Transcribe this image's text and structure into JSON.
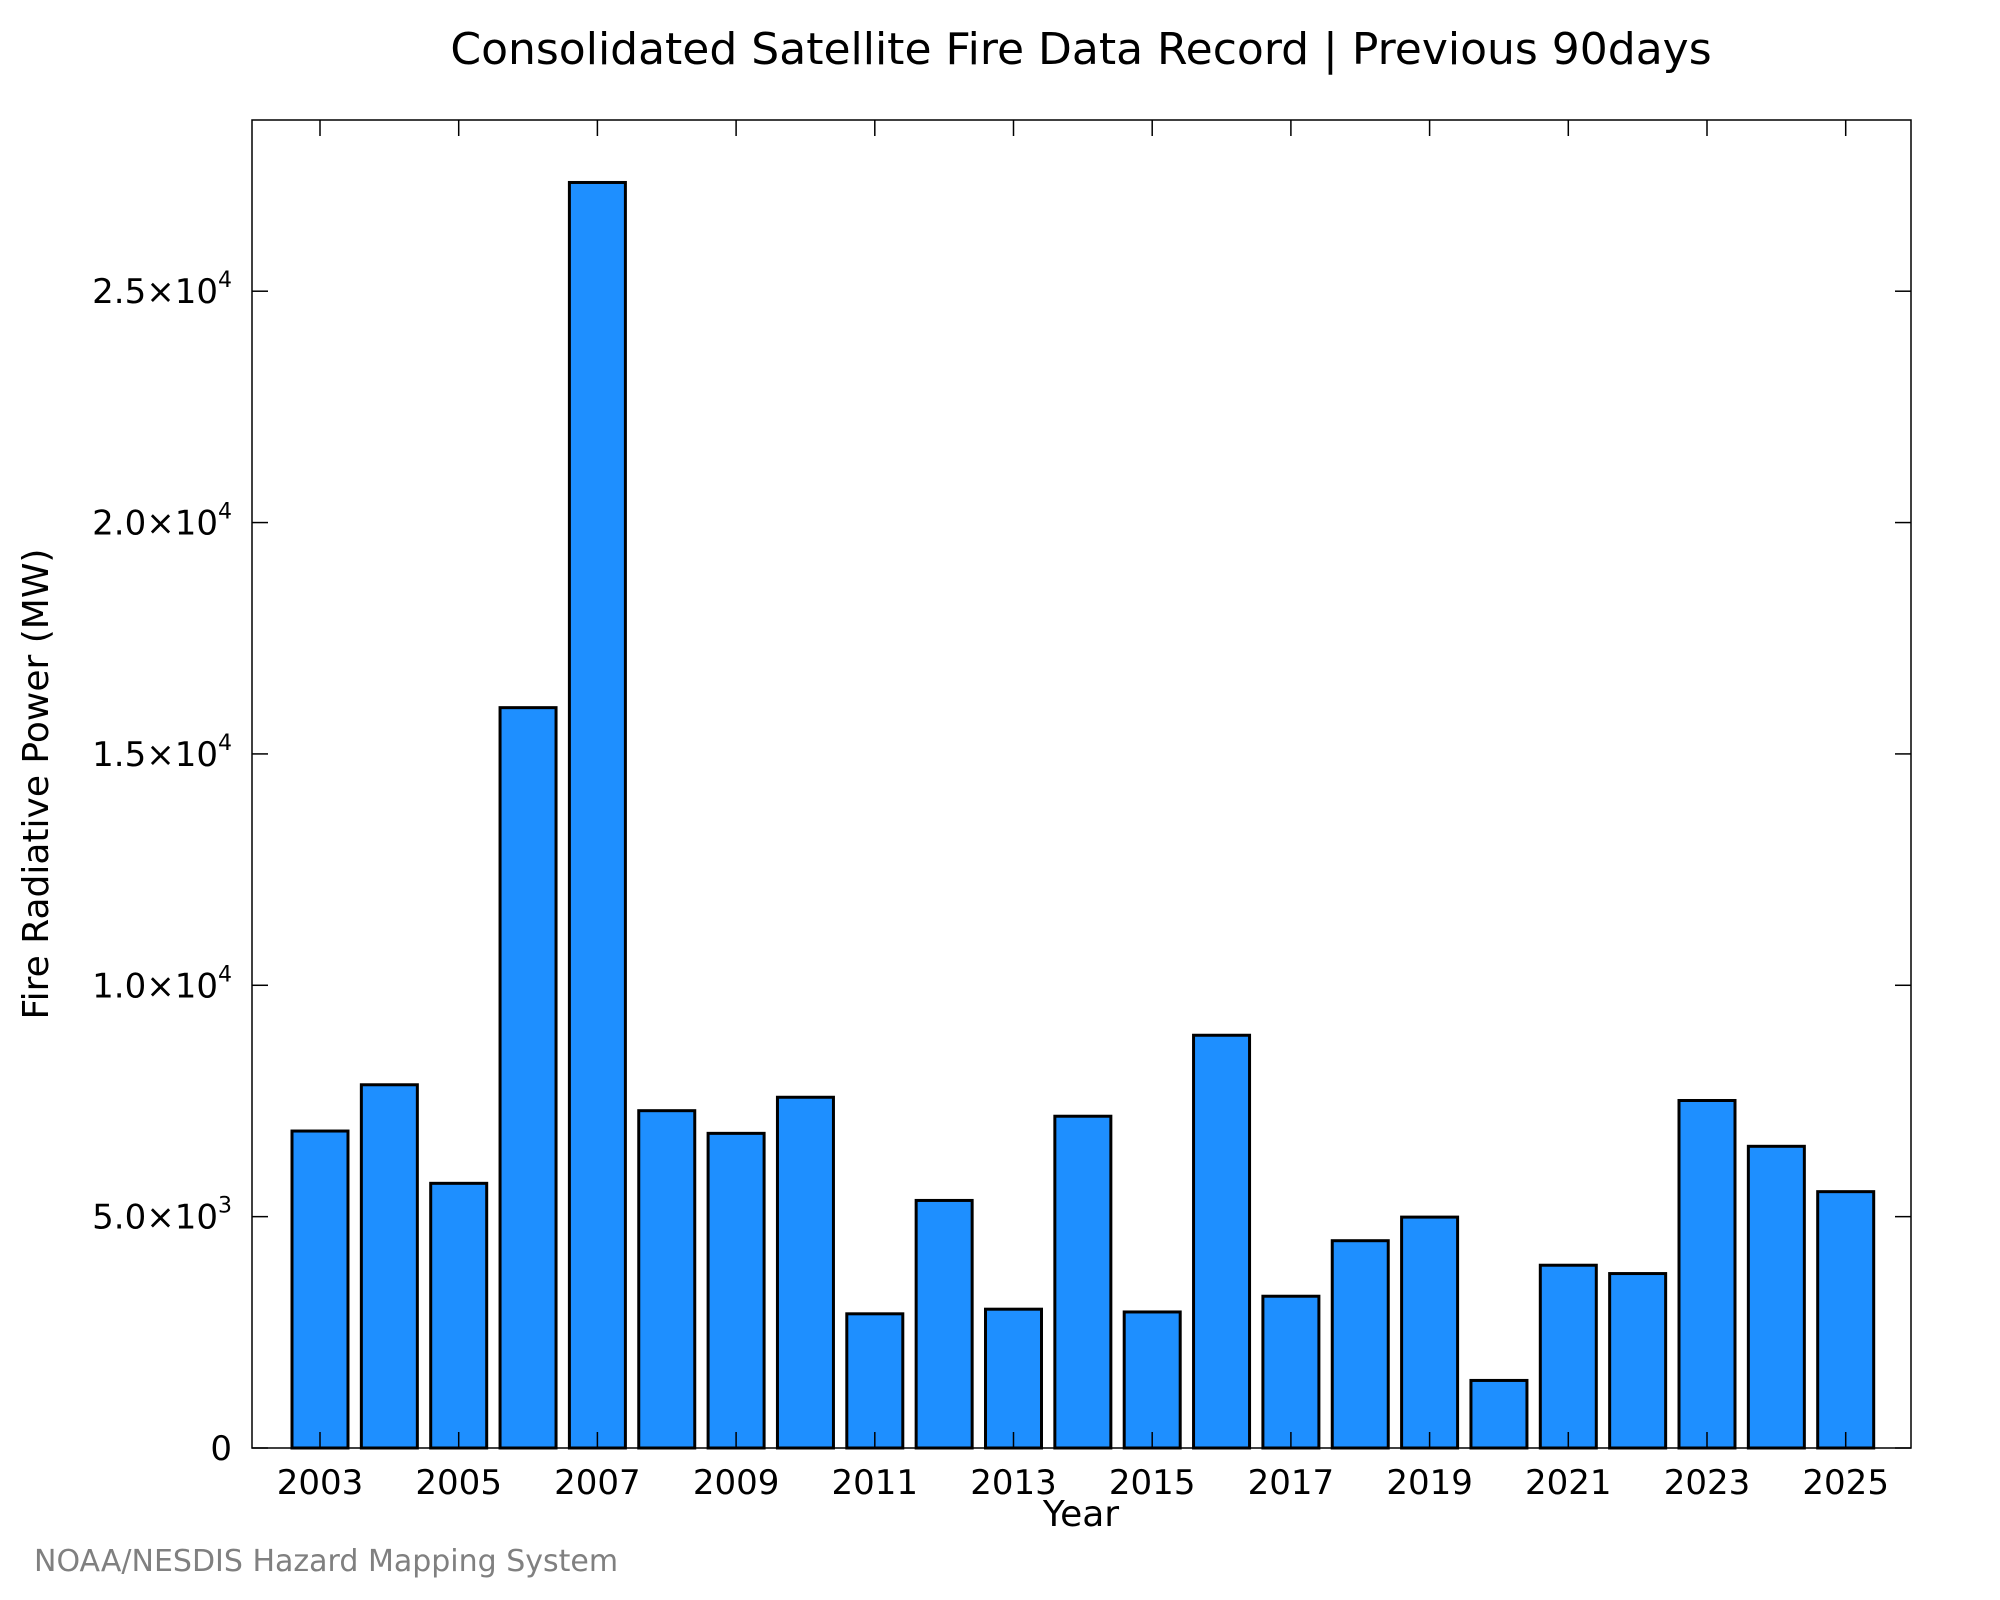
{
  "chart_data": {
    "type": "bar",
    "title": "Consolidated Satellite Fire Data Record | Previous 90days",
    "xlabel": "Year",
    "ylabel": "Fire Radiative Power (MW)",
    "categories": [
      "2003",
      "2004",
      "2005",
      "2006",
      "2007",
      "2008",
      "2009",
      "2010",
      "2011",
      "2012",
      "2013",
      "2014",
      "2015",
      "2016",
      "2017",
      "2018",
      "2019",
      "2020",
      "2021",
      "2022",
      "2023",
      "2024",
      "2025"
    ],
    "values": [
      6850,
      7850,
      5720,
      16000,
      27350,
      7290,
      6800,
      7580,
      2900,
      5350,
      3000,
      7170,
      2940,
      8920,
      3280,
      4480,
      4990,
      1460,
      3950,
      3770,
      7510,
      6520,
      5540
    ],
    "x_ticks": [
      "2003",
      "2005",
      "2007",
      "2009",
      "2011",
      "2013",
      "2015",
      "2017",
      "2019",
      "2021",
      "2023",
      "2025"
    ],
    "y_ticks": [
      {
        "value": 0,
        "mantissa": "0",
        "exp": ""
      },
      {
        "value": 5000,
        "mantissa": "5.0×10",
        "exp": "3"
      },
      {
        "value": 10000,
        "mantissa": "1.0×10",
        "exp": "4"
      },
      {
        "value": 15000,
        "mantissa": "1.5×10",
        "exp": "4"
      },
      {
        "value": 20000,
        "mantissa": "2.0×10",
        "exp": "4"
      },
      {
        "value": 25000,
        "mantissa": "2.5×10",
        "exp": "4"
      }
    ],
    "ylim": [
      0,
      28700
    ],
    "grid": false,
    "bar_color": "#1e8fff",
    "footer": "NOAA/NESDIS Hazard Mapping System"
  }
}
